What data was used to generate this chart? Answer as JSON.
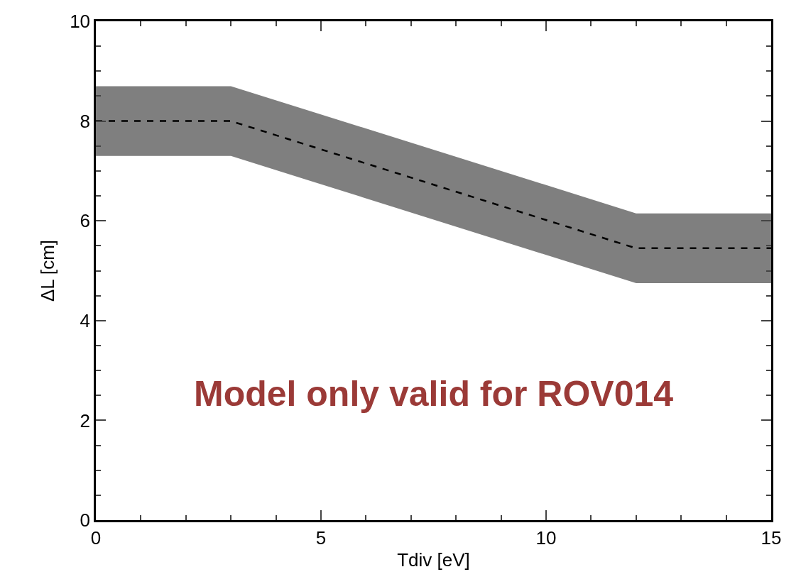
{
  "chart_data": {
    "type": "line",
    "xlabel": "Tdiv [eV]",
    "ylabel": "ΔL [cm]",
    "x": [
      0,
      3,
      12,
      15
    ],
    "series": [
      {
        "color": "#000000",
        "values": [
          8.0,
          8.0,
          5.45,
          5.45
        ],
        "lower": [
          7.3,
          7.3,
          4.75,
          4.75
        ],
        "upper": [
          8.7,
          8.7,
          6.15,
          6.15
        ]
      }
    ],
    "xlim": [
      0,
      15
    ],
    "xticks": [
      0,
      5,
      10,
      15
    ],
    "ylim": [
      0,
      10
    ],
    "yticks": [
      0,
      2,
      4,
      6,
      8,
      10
    ],
    "line_style": "dashed",
    "annotations": [
      "Model only valid for ROV014"
    ]
  }
}
